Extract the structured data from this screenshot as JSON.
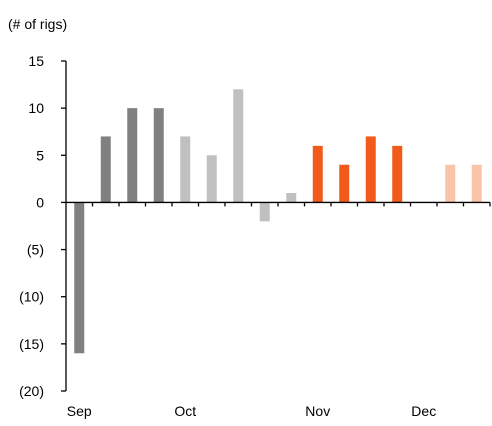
{
  "chart_data": {
    "type": "bar",
    "title": "",
    "ylabel": "(# of rigs)",
    "xlabel": "",
    "ylim": [
      -20,
      15
    ],
    "yticks": [
      15,
      10,
      5,
      0,
      -5,
      -10,
      -15,
      -20
    ],
    "ytick_labels": [
      "15",
      "10",
      "5",
      "0",
      "(5)",
      "(10)",
      "(15)",
      "(20)"
    ],
    "month_labels": [
      "Sep",
      "Oct",
      "Nov",
      "Dec"
    ],
    "month_label_week_index": [
      0,
      4,
      9,
      13
    ],
    "grid": false,
    "legend": "none",
    "week_count": 16,
    "values": [
      -16,
      7,
      10,
      10,
      7,
      5,
      12,
      -2,
      1,
      6,
      4,
      7,
      6,
      null,
      4,
      4
    ],
    "colors": [
      "#808080",
      "#808080",
      "#808080",
      "#808080",
      "#c0c0c0",
      "#c0c0c0",
      "#c0c0c0",
      "#c0c0c0",
      "#c0c0c0",
      "#f15a1a",
      "#f15a1a",
      "#f15a1a",
      "#f15a1a",
      "#f15a1a",
      "#f9c4a8",
      "#f9c4a8"
    ]
  }
}
